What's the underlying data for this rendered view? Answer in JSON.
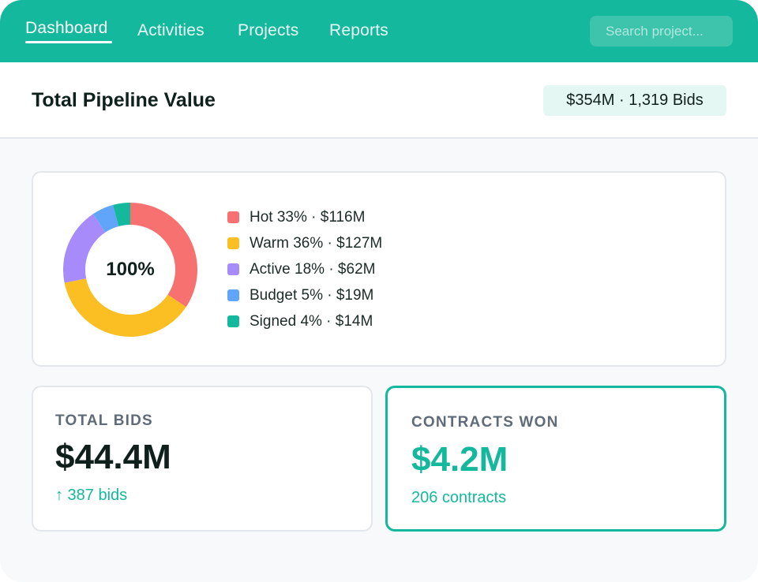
{
  "nav": {
    "items": [
      {
        "label": "Dashboard",
        "active": true
      },
      {
        "label": "Activities",
        "active": false
      },
      {
        "label": "Projects",
        "active": false
      },
      {
        "label": "Reports",
        "active": false
      }
    ],
    "search_placeholder": "Search project..."
  },
  "header": {
    "title": "Total Pipeline Value",
    "summary": "$354M · 1,319 Bids"
  },
  "chart_data": {
    "type": "pie",
    "center_label": "100%",
    "series": [
      {
        "name": "Hot",
        "percent": 33,
        "value_label": "$116M",
        "legend": "Hot 33% · $116M",
        "color": "#f87171"
      },
      {
        "name": "Warm",
        "percent": 36,
        "value_label": "$127M",
        "legend": "Warm 36% · $127M",
        "color": "#fbbf24"
      },
      {
        "name": "Active",
        "percent": 18,
        "value_label": "$62M",
        "legend": "Active 18% · $62M",
        "color": "#a78bfa"
      },
      {
        "name": "Budget",
        "percent": 5,
        "value_label": "$19M",
        "legend": "Budget 5% · $19M",
        "color": "#60a5fa"
      },
      {
        "name": "Signed",
        "percent": 4,
        "value_label": "$14M",
        "legend": "Signed 4% · $14M",
        "color": "#14b89c"
      }
    ]
  },
  "kpis": {
    "total_bids": {
      "label": "TOTAL BIDS",
      "value": "$44.4M",
      "sub": "↑ 387 bids"
    },
    "contracts_won": {
      "label": "CONTRACTS WON",
      "value": "$4.2M",
      "sub": "206 contracts"
    }
  },
  "colors": {
    "accent": "#14b89c",
    "text": "#10201d",
    "muted": "#5f6b78"
  }
}
